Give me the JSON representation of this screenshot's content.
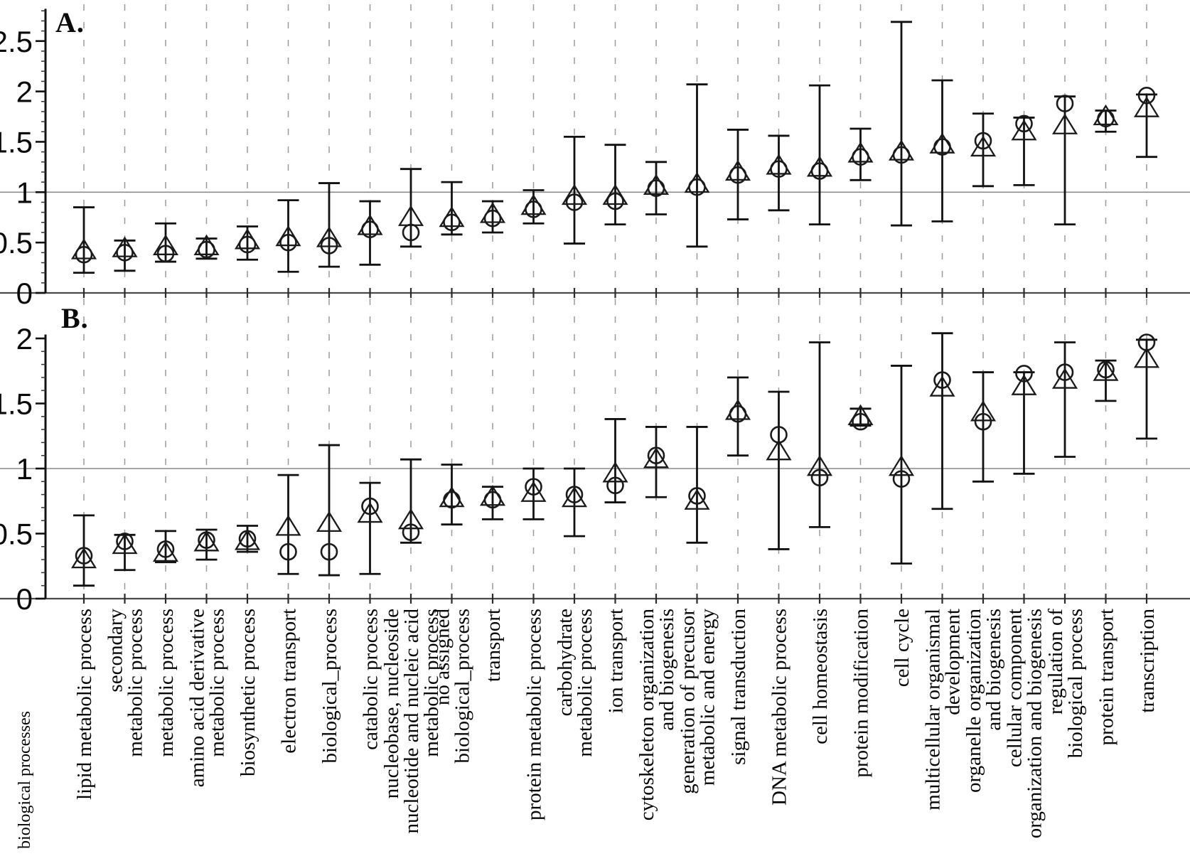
{
  "figure": {
    "panel_a_label": "A.",
    "panel_b_label": "B.",
    "category_axis_label": "biological processes"
  },
  "colors": {
    "ink": "#111111",
    "marker": "#1a1a1a",
    "grid": "#9a9a9a",
    "reference_line": "#8c8c8c"
  },
  "categories": [
    [
      "lipid metabolic process"
    ],
    [
      "secondary",
      "metabolic process"
    ],
    [
      "metabolic process"
    ],
    [
      "amino acid derivative",
      "metabolic process"
    ],
    [
      "biosynthetic process"
    ],
    [
      "electron transport"
    ],
    [
      "biological_process"
    ],
    [
      "catabolic process"
    ],
    [
      "nucleobase, nucleoside",
      "nucleotide and nucleic acid",
      "metabolic process"
    ],
    [
      "no assigned",
      "biological_process"
    ],
    [
      "transport"
    ],
    [
      "protein metabolic process"
    ],
    [
      "carbohydrate",
      "metabolic process"
    ],
    [
      "ion transport"
    ],
    [
      "cytoskeleton organization",
      "and biogenesis"
    ],
    [
      "generation of precusor",
      "metabolic and energy"
    ],
    [
      "signal transduction"
    ],
    [
      "DNA metabolic process"
    ],
    [
      "cell homeostasis"
    ],
    [
      "protein modification"
    ],
    [
      "cell cycle"
    ],
    [
      "multicellular organismal",
      "development"
    ],
    [
      "organelle organization",
      "and biogenesis"
    ],
    [
      "cellular component",
      "organization and biogenesis"
    ],
    [
      "regulation of",
      "biological process"
    ],
    [
      "protein transport"
    ],
    [
      "transcription"
    ]
  ],
  "chart_data": [
    {
      "type": "scatter",
      "panel": "A.",
      "ylabel": "",
      "xlabel": "biological processes",
      "ylim": [
        0,
        2.85
      ],
      "yticks": [
        0,
        0.5,
        1,
        1.5,
        2,
        2.5
      ],
      "reference_line_y": 1,
      "grid": "vertical-dashed",
      "marker_style": "open",
      "series": [
        {
          "name": "circles",
          "marker": "circle",
          "values": [
            0.38,
            0.4,
            0.39,
            0.43,
            0.48,
            0.5,
            0.47,
            0.63,
            0.6,
            0.7,
            0.74,
            0.83,
            0.9,
            0.91,
            1.04,
            1.05,
            1.17,
            1.23,
            1.21,
            1.35,
            1.37,
            1.45,
            1.51,
            1.68,
            1.88,
            1.73,
            1.96
          ]
        },
        {
          "name": "triangles",
          "marker": "triangle-up",
          "values": [
            0.42,
            0.44,
            0.46,
            0.46,
            0.52,
            0.55,
            0.54,
            0.66,
            0.75,
            0.74,
            0.78,
            0.86,
            0.96,
            0.96,
            1.06,
            1.08,
            1.2,
            1.26,
            1.24,
            1.38,
            1.4,
            1.47,
            1.44,
            1.6,
            1.66,
            1.75,
            1.83
          ]
        },
        {
          "name": "error_low",
          "values": [
            0.2,
            0.22,
            0.31,
            0.34,
            0.33,
            0.21,
            0.26,
            0.28,
            0.46,
            0.58,
            0.6,
            0.69,
            0.49,
            0.68,
            0.78,
            0.46,
            0.73,
            0.82,
            0.68,
            1.12,
            0.67,
            0.71,
            1.06,
            1.07,
            0.68,
            1.6,
            1.35
          ]
        },
        {
          "name": "error_high",
          "values": [
            0.85,
            0.52,
            0.69,
            0.54,
            0.66,
            0.92,
            1.09,
            0.91,
            1.23,
            1.1,
            0.91,
            1.02,
            1.55,
            1.47,
            1.3,
            2.07,
            1.62,
            1.56,
            2.06,
            1.63,
            2.69,
            2.11,
            1.78,
            1.74,
            1.95,
            1.81,
            1.97
          ]
        }
      ]
    },
    {
      "type": "scatter",
      "panel": "B.",
      "ylabel": "",
      "xlabel": "biological processes",
      "ylim": [
        0,
        2.3
      ],
      "yticks": [
        0,
        0.5,
        1,
        1.5,
        2
      ],
      "reference_line_y": 1,
      "grid": "vertical-dashed",
      "marker_style": "open",
      "series": [
        {
          "name": "circles",
          "marker": "circle",
          "values": [
            0.33,
            0.44,
            0.38,
            0.45,
            0.46,
            0.36,
            0.36,
            0.71,
            0.51,
            0.76,
            0.76,
            0.86,
            0.8,
            0.87,
            1.1,
            0.79,
            1.42,
            1.26,
            0.93,
            1.36,
            0.92,
            1.68,
            1.36,
            1.73,
            1.74,
            1.76,
            1.97
          ]
        },
        {
          "name": "triangles",
          "marker": "triangle-up",
          "values": [
            0.3,
            0.41,
            0.35,
            0.43,
            0.44,
            0.55,
            0.58,
            0.65,
            0.6,
            0.77,
            0.78,
            0.81,
            0.77,
            0.96,
            1.07,
            0.75,
            1.44,
            1.13,
            1.01,
            1.4,
            1.01,
            1.62,
            1.43,
            1.63,
            1.68,
            1.74,
            1.84
          ]
        },
        {
          "name": "error_low",
          "values": [
            0.1,
            0.22,
            0.28,
            0.3,
            0.36,
            0.19,
            0.18,
            0.19,
            0.43,
            0.57,
            0.61,
            0.61,
            0.48,
            0.74,
            0.78,
            0.43,
            1.1,
            0.38,
            0.55,
            1.33,
            0.27,
            0.69,
            0.9,
            0.96,
            1.09,
            1.52,
            1.23
          ]
        },
        {
          "name": "error_high",
          "values": [
            0.64,
            0.49,
            0.52,
            0.53,
            0.56,
            0.95,
            1.18,
            0.89,
            1.07,
            1.03,
            0.86,
            1.0,
            1.0,
            1.38,
            1.32,
            1.32,
            1.7,
            1.59,
            1.97,
            1.46,
            1.79,
            2.04,
            1.74,
            1.74,
            1.97,
            1.83,
            1.99
          ]
        }
      ]
    }
  ]
}
